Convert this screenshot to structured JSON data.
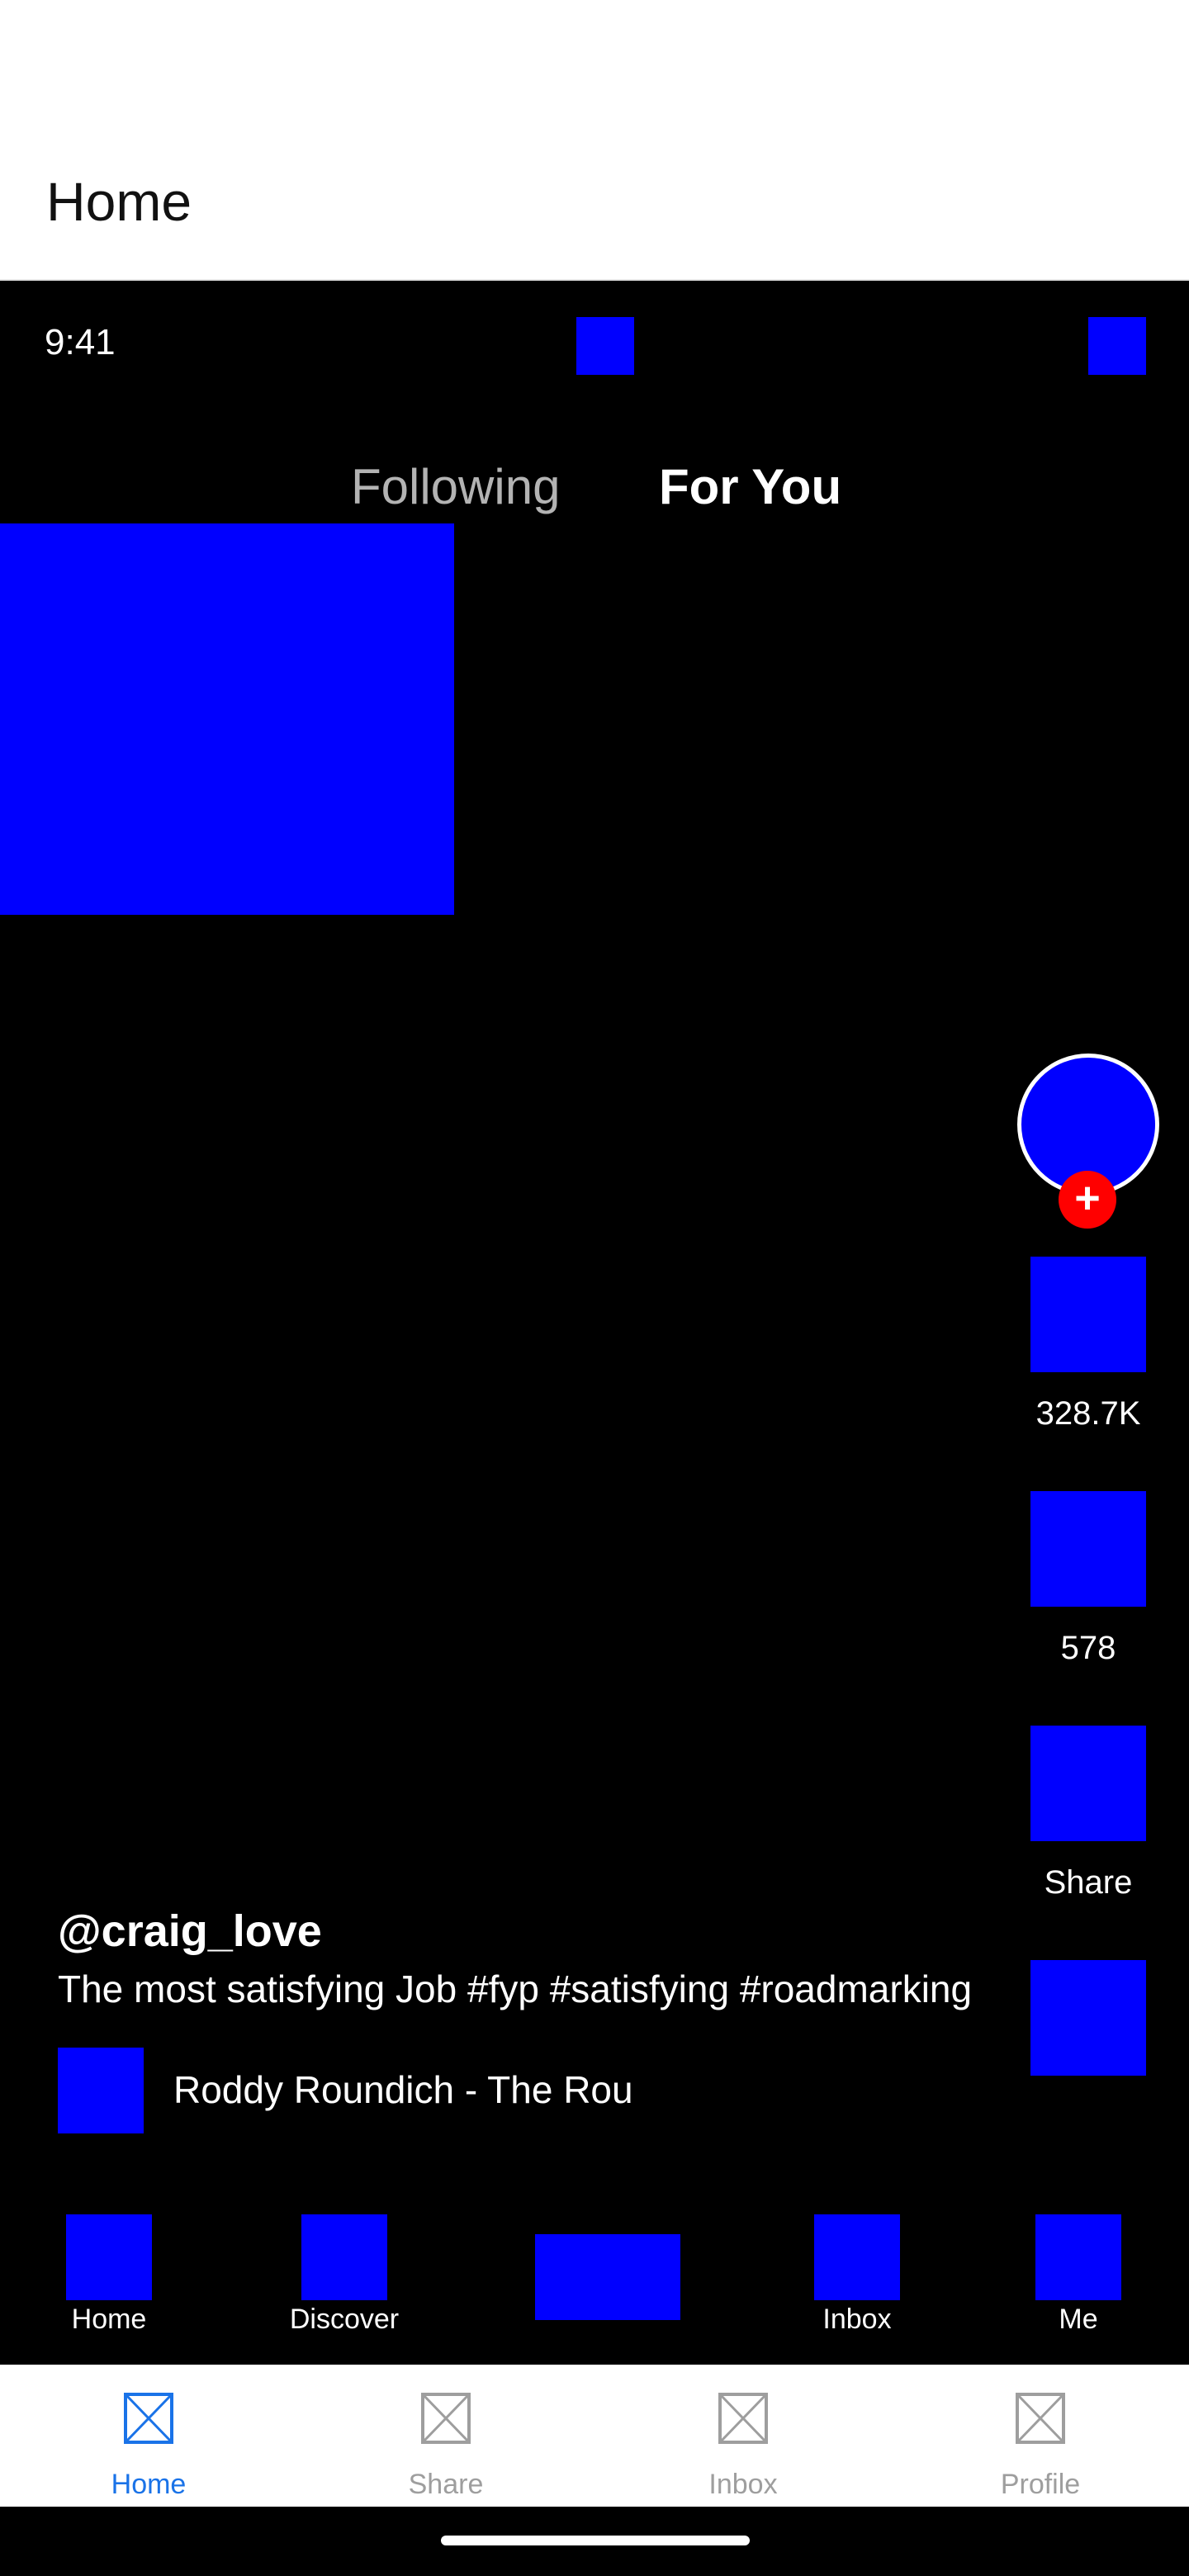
{
  "header": {
    "title": "Home"
  },
  "status_bar": {
    "time": "9:41"
  },
  "feed_tabs": [
    {
      "label": "Following",
      "active": false
    },
    {
      "label": "For You",
      "active": true
    }
  ],
  "actions": {
    "follow_symbol": "+",
    "like_count": "328.7K",
    "comment_count": "578",
    "share_label": "Share"
  },
  "post": {
    "username": "@craig_love",
    "caption": "The most satisfying Job #fyp #satisfying #roadmarking",
    "music": "Roddy Roundich - The Rou"
  },
  "inner_nav": [
    {
      "label": "Home"
    },
    {
      "label": "Discover"
    },
    {
      "label": ""
    },
    {
      "label": "Inbox"
    },
    {
      "label": "Me"
    }
  ],
  "bottom_nav": [
    {
      "label": "Home",
      "active": true
    },
    {
      "label": "Share",
      "active": false
    },
    {
      "label": "Inbox",
      "active": false
    },
    {
      "label": "Profile",
      "active": false
    }
  ],
  "colors": {
    "placeholder": "#0000ff",
    "follow_badge": "#ff0000",
    "active_tab": "#1a73e8",
    "inactive_tab": "#9e9e9e"
  }
}
